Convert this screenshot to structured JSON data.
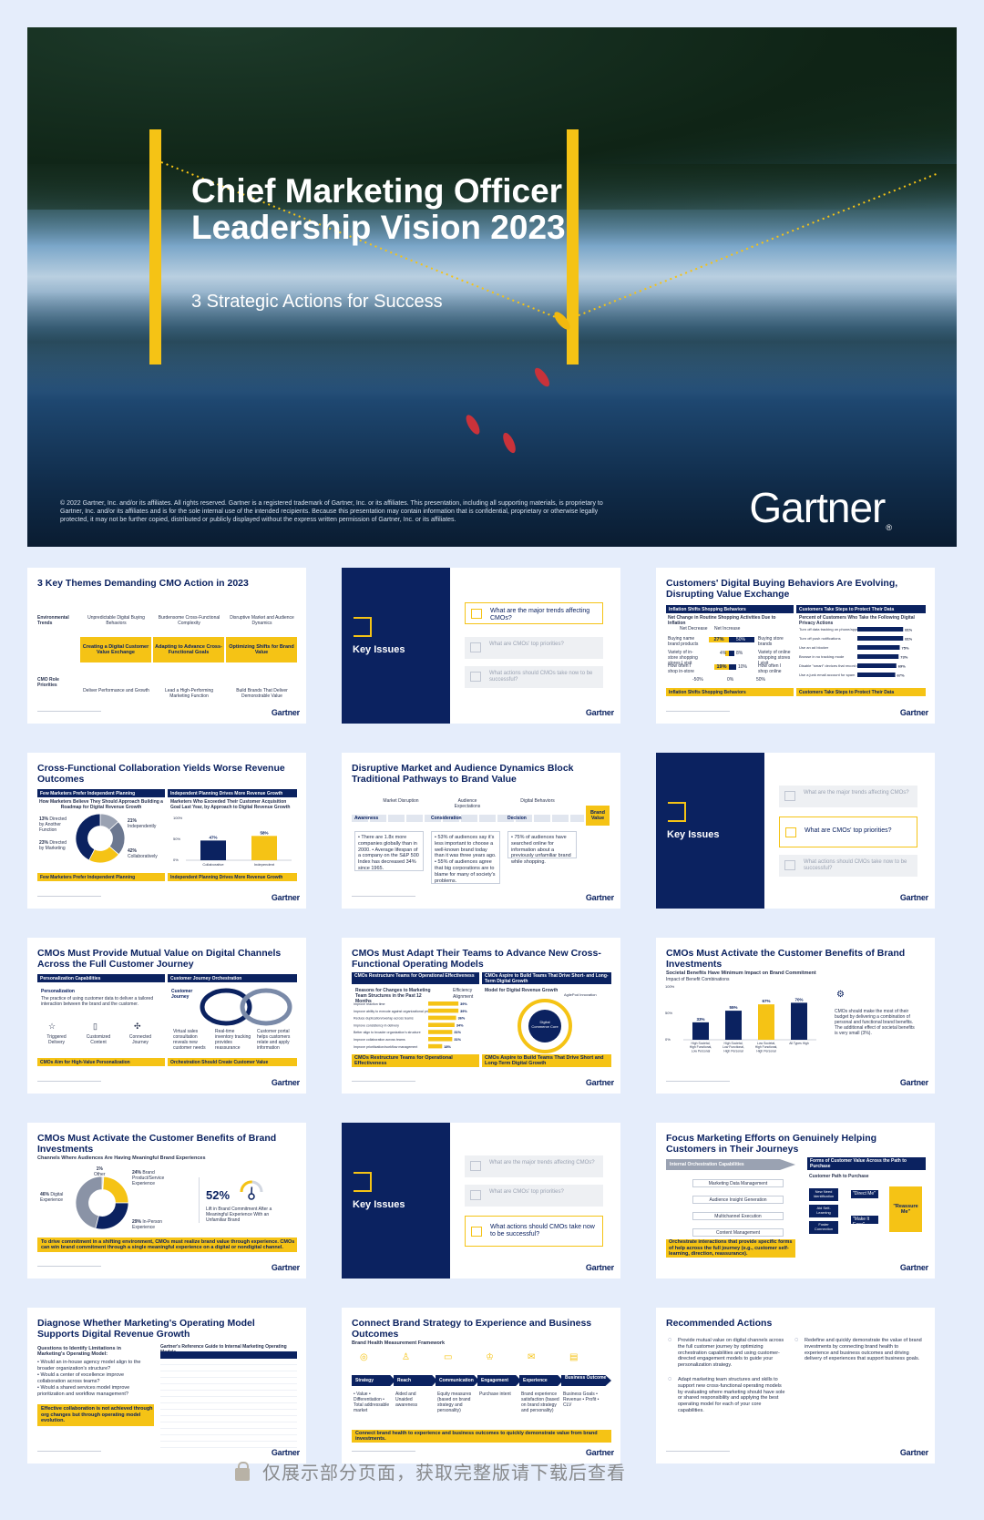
{
  "cover": {
    "title": "Chief Marketing Officer Leadership Vision 2023",
    "subtitle": "3 Strategic Actions for Success",
    "legal": "© 2022 Gartner, Inc. and/or its affiliates. All rights reserved. Gartner is a registered trademark of Gartner, Inc. or its affiliates. This presentation, including all supporting materials, is proprietary to Gartner, Inc. and/or its affiliates and is for the sole internal use of the intended recipients. Because this presentation may contain information that is confidential, proprietary or otherwise legally protected, it may not be further copied, distributed or publicly displayed without the express written permission of Gartner, Inc. or its affiliates.",
    "logo": "Gartner",
    "logo_mark": "®",
    "accent": "#f5c315",
    "brand_navy": "#0b2260"
  },
  "brand": "Gartner",
  "key_issues": {
    "label": "Key Issues",
    "q1": "What are the major trends affecting CMOs?",
    "q2": "What are CMOs' top priorities?",
    "q3": "What actions should CMOs take now to be successful?"
  },
  "s1": {
    "title": "3 Key Themes Demanding CMO Action in 2023",
    "row1": "Environmental Trends",
    "row2": "CMO Role Priorities",
    "cols": [
      {
        "top": "Unpredictable Digital Buying Behaviors",
        "mid": "Creating a Digital Customer Value Exchange",
        "bot": "Deliver Performance and Growth"
      },
      {
        "top": "Burdensome Cross-Functional Complexity",
        "mid": "Adapting to Advance Cross-Functional Goals",
        "bot": "Lead a High-Performing Marketing Function"
      },
      {
        "top": "Disruptive Market and Audience Dynamics",
        "mid": "Optimizing Shifts for Brand Value",
        "bot": "Build Brands That Deliver Demonstrable Value"
      }
    ]
  },
  "s3": {
    "title": "Customers' Digital Buying Behaviors Are Evolving, Disrupting Value Exchange",
    "h1": "Inflation Shifts Shopping Behaviors",
    "h2": "Customers Take Steps to Protect Their Data",
    "sub1": "Net Change in Routine Shopping Activities Due to Inflation",
    "sub2": "Percent of Customers Who Take the Following Digital Privacy Actions",
    "legend": [
      "Net Decrease",
      "Net Increase"
    ],
    "rows_left": [
      "Buying name brand products",
      "Variety of in-store shopping stores I visit",
      "How often I shop in-store"
    ],
    "rows_right": [
      "Buying store brands",
      "Variety of online shopping stores I visit",
      "How often I shop online"
    ],
    "left_vals": [
      "27%",
      "4%",
      "19%"
    ],
    "right_vals": [
      "50%",
      "8%",
      "10%"
    ],
    "privacy": [
      {
        "label": "Turn off data tracking on phone/apps",
        "value": 81
      },
      {
        "label": "Turn off push notifications",
        "value": 81
      },
      {
        "label": "Use an ad blocker",
        "value": 75
      },
      {
        "label": "Browse in no tracking mode",
        "value": 73
      },
      {
        "label": "Disable \"smart\" devices that record me",
        "value": 69
      },
      {
        "label": "Use a junk email account for spam",
        "value": 67
      }
    ],
    "privacy_labels": [
      "81%",
      "81%",
      "75%",
      "73%",
      "69%",
      "67%"
    ],
    "axis": [
      "-50%",
      "0%",
      "50%"
    ],
    "axis2": [
      "0%",
      "50%",
      "100%"
    ],
    "f1": "Inflation Shifts Shopping Behaviors",
    "f2": "Customers Take Steps to Protect Their Data"
  },
  "s4": {
    "title": "Cross-Functional Collaboration Yields Worse Revenue Outcomes",
    "h1": "Few Marketers Prefer Independent Planning",
    "h2": "Independent Planning Drives More Revenue Growth",
    "sub1": "How Marketers Believe They Should Approach Building a Roadmap for Digital Revenue Growth",
    "sub2": "Marketers Who Exceeded Their Customer Acquisition Goal Last Year, by Approach to Digital Revenue Growth",
    "donut": [
      {
        "label": "13% Directed by Another Function",
        "value": 13
      },
      {
        "label": "23% Directed by Marketing",
        "value": 23
      },
      {
        "label": "21% Independently",
        "value": 21
      },
      {
        "label": "42% Collaboratively",
        "value": 42
      }
    ],
    "d_l1": "13%",
    "d_l1b": "Directed by Another Function",
    "d_l2": "23%",
    "d_l2b": "Directed by Marketing",
    "d_l3": "21%",
    "d_l3b": "Independently",
    "d_l4": "42%",
    "d_l4b": "Collaboratively",
    "bars": [
      {
        "label": "Collaborative",
        "value": 47
      },
      {
        "label": "Independent",
        "value": 58
      }
    ],
    "bar_labels": [
      "47%",
      "58%"
    ],
    "axis": [
      "100%",
      "50%",
      "0%"
    ],
    "f1": "Few Marketers Prefer Independent Planning",
    "f2": "Independent Planning Drives More Revenue Growth"
  },
  "s5": {
    "title": "Disruptive Market and Audience Dynamics Block Traditional Pathways to Brand Value",
    "stages": [
      "Awareness",
      "Consideration",
      "Decision"
    ],
    "drivers": [
      "Market Disruption",
      "Audience Expectations",
      "Digital Behaviors"
    ],
    "end": "Brand Value",
    "b1": "• There are 1.8x more companies globally than in 2000. • Average lifespan of a company on the S&P 500 Index has decreased 34% since 1965.",
    "b2": "• 53% of audiences say it's less important to choose a well-known brand today than it was three years ago. • 55% of audiences agree that big corporations are to blame for many of society's problems.",
    "b3": "• 75% of audiences have searched online for information about a previously unfamiliar brand while shopping."
  },
  "s7": {
    "title": "CMOs Must Provide Mutual Value on Digital Channels Across the Full Customer Journey",
    "h1": "Personalization Capabilities",
    "h2": "Customer Journey Orchestration",
    "p_title": "Personalization",
    "p_text": "The practice of using customer data to deliver a tailored interaction between the brand and the customer.",
    "icons": [
      "Triggered Delivery",
      "Customized Content",
      "Connected Journey"
    ],
    "cj": "Customer Journey",
    "cj_items": [
      "Virtual sales consultation reveals new customer needs",
      "Real-time inventory tracking provides reassurance",
      "Customer portal helps customers relate and apply information"
    ],
    "f1": "CMOs Aim for High-Value Personalization",
    "f2": "Orchestration Should Create Customer Value"
  },
  "s8": {
    "title": "CMOs Must Adapt Their Teams to Advance New Cross-Functional Operating Models",
    "h1": "CMOs Restructure Teams for Operational Effectiveness",
    "h2": "CMOs Aspire to Build Teams That Drive Short- and Long-Term Digital Growth",
    "sub1": "Reasons for Changes to Marketing Team Structures in the Past 12 Months",
    "sub2": "Model for Digital Revenue Growth",
    "legend": [
      "Efficiency",
      "Alignment"
    ],
    "rows": [
      {
        "label": "Improve reaction time",
        "value": 39
      },
      {
        "label": "Improve ability to execute against organizational priorities",
        "value": 39
      },
      {
        "label": "Reduce duplication/overlap across teams",
        "value": 36
      },
      {
        "label": "Improve consistency in delivery",
        "value": 34
      },
      {
        "label": "Better align to broader organization's structure",
        "value": 31
      },
      {
        "label": "Improve collaboration across teams",
        "value": 31
      },
      {
        "label": "Improve prioritization/workflow management",
        "value": 18
      }
    ],
    "row_labels": [
      "39%",
      "39%",
      "36%",
      "34%",
      "31%",
      "31%",
      "18%"
    ],
    "center": "Digital Commerce Core",
    "outer": "AgilePod Innovation",
    "f1": "CMOs Restructure Teams for Operational Effectiveness",
    "f2": "CMOs Aspire to Build Teams That Drive Short and Long-Term Digital Growth"
  },
  "s9": {
    "title": "CMOs Must Activate the Customer Benefits of Brand Investments",
    "sub": "Societal Benefits Have Minimum Impact on Brand Commitment",
    "sub2": "Impact of Benefit Combinations",
    "bars": [
      {
        "label": "High Societal, High Functional, Low Personal",
        "value": 33
      },
      {
        "label": "High Societal, Low Functional, High Personal",
        "value": 55
      },
      {
        "label": "Low Societal, High Functional, High Personal",
        "value": 67
      },
      {
        "label": "All Types High",
        "value": 70
      }
    ],
    "bar_labels": [
      "33%",
      "55%",
      "67%",
      "70%"
    ],
    "axis": [
      "100%",
      "50%",
      "0%"
    ],
    "note": "CMOs should make the most of their budget by delivering a combination of personal and functional brand benefits. The additional effect of societal benefits is very small (3%)."
  },
  "s10": {
    "title": "CMOs Must Activate the Customer Benefits of Brand Investments",
    "sub": "Channels Where Audiences Are Having Meaningful Brand Experiences",
    "donut": [
      {
        "label": "Other",
        "value": 1
      },
      {
        "label": "Brand Product/Service Experience",
        "value": 24
      },
      {
        "label": "In-Person Experience",
        "value": 29
      },
      {
        "label": "Digital Experience",
        "value": 46
      }
    ],
    "l_other": "1%",
    "l_other_b": "Other",
    "l_brand": "24%",
    "l_brand_b": "Brand Product/Service Experience",
    "l_inp": "29%",
    "l_inp_b": "In-Person Experience",
    "l_dig": "46%",
    "l_dig_b": "Digital Experience",
    "kpi": "52%",
    "kpi_text": "Lift in Brand Commitment After a Meaningful Experience With an Unfamiliar Brand",
    "kpi_value": 52,
    "banner": "To drive commitment in a shifting environment, CMOs must realize brand value through experience. CMOs can win brand commitment through a single meaningful experience on a digital or nondigital channel."
  },
  "s12": {
    "title": "Focus Marketing Efforts on Genuinely Helping Customers in Their Journeys",
    "h1": "Internal Orchestration Capabilities",
    "h2": "Forms of Customer Value Across the Path to Purchase",
    "path": "Customer Path to Purchase",
    "caps": [
      "Marketing Data Management",
      "Audience Insight Generation",
      "Multichannel Execution",
      "Content Management"
    ],
    "forms": [
      "New Need Identification",
      "Aid Self-Learning",
      "Foster Connection"
    ],
    "quotes": [
      "\"Direct Me\"",
      "\"Make It Easy\"",
      "\"Reassure Me\""
    ],
    "banner": "Orchestrate interactions that provide specific forms of help across the full journey (e.g., customer self-learning, direction, reassurance)."
  },
  "s13": {
    "title": "Diagnose Whether Marketing's Operating Model Supports Digital Revenue Growth",
    "q_title": "Questions to Identify Limitations in Marketing's Operating Model:",
    "qs": [
      "Would an in-house agency model align to the broader organization's structure?",
      "Would a center of excellence improve collaboration across teams?",
      "Would a shared services model improve prioritization and workflow management?"
    ],
    "banner": "Effective collaboration is not achieved through org changes but through operating model evolution.",
    "table_title": "Gartner's Reference Guide to Internal Marketing Operating Models"
  },
  "s14": {
    "title": "Connect Brand Strategy to Experience and Business Outcomes",
    "sub": "Brand Health Measurement Framework",
    "steps": [
      "Strategy",
      "Reach",
      "Communication",
      "Engagement",
      "Experience",
      "Business Outcome"
    ],
    "details": [
      "• Value • Differentiation • Total addressable market",
      "Aided and Unaided awareness",
      "Equity measures (based on brand strategy and personality)",
      "Purchase intent",
      "Brand experience satisfaction (based on brand strategy and personality)",
      "Business Goals • Revenue • Profit • CLV"
    ],
    "banner": "Connect brand health to experience and business outcomes to quickly demonstrate value from brand investments."
  },
  "s15": {
    "title": "Recommended Actions",
    "actions": [
      "Provide mutual value on digital channels across the full customer journey by optimizing orchestration capabilities and using customer-directed engagement models to guide your personalization strategy.",
      "Adapt marketing team structures and skills to support new cross-functional operating models by evaluating where marketing should have sole or shared responsibility and applying the best operating model for each of your core capabilities.",
      "Redefine and quickly demonstrate the value of brand investments by connecting brand health to experience and business outcomes and driving delivery of experiences that support business goals."
    ]
  },
  "watermark": "仅展示部分页面，获取完整版请下载后查看"
}
